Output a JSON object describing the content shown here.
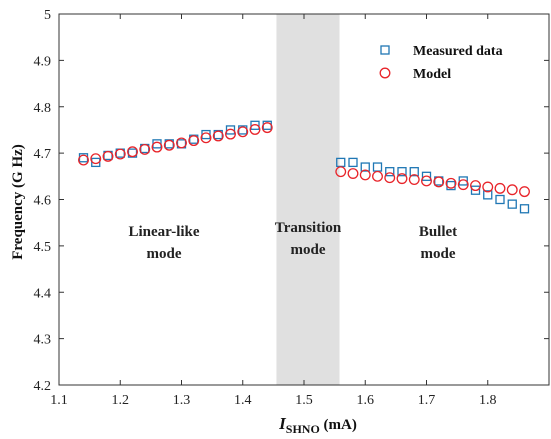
{
  "chart_data": {
    "type": "scatter",
    "xlabel": {
      "main": "I",
      "sub": "SHNO",
      "unit": " (mA)"
    },
    "ylabel": "Frequency (G Hz)",
    "xlim": [
      1.1,
      1.9
    ],
    "ylim": [
      4.2,
      5.0
    ],
    "xticks": [
      "1.1",
      "1.2",
      "1.3",
      "1.4",
      "1.5",
      "1.6",
      "1.7",
      "1.8"
    ],
    "yticks": [
      "4.2",
      "4.3",
      "4.4",
      "4.5",
      "4.6",
      "4.7",
      "4.8",
      "4.9",
      "5"
    ],
    "xtick_values": [
      1.1,
      1.2,
      1.3,
      1.4,
      1.5,
      1.6,
      1.7,
      1.8
    ],
    "ytick_values": [
      4.2,
      4.3,
      4.4,
      4.5,
      4.6,
      4.7,
      4.8,
      4.9,
      5.0
    ],
    "shaded_region": {
      "x": [
        1.455,
        1.558
      ],
      "color": "#e0e0e0"
    },
    "region_labels": [
      {
        "lines": [
          "Linear-like",
          "mode"
        ]
      },
      {
        "lines": [
          "Transition",
          "mode"
        ]
      },
      {
        "lines": [
          "Bullet",
          "mode"
        ]
      }
    ],
    "legend_position": "top-right",
    "series": [
      {
        "name": "Measured data",
        "marker": "square",
        "color": "#1f77b4",
        "points": [
          [
            1.14,
            4.69
          ],
          [
            1.16,
            4.68
          ],
          [
            1.18,
            4.695
          ],
          [
            1.2,
            4.7
          ],
          [
            1.22,
            4.7
          ],
          [
            1.24,
            4.71
          ],
          [
            1.26,
            4.72
          ],
          [
            1.28,
            4.72
          ],
          [
            1.3,
            4.72
          ],
          [
            1.32,
            4.73
          ],
          [
            1.34,
            4.74
          ],
          [
            1.36,
            4.74
          ],
          [
            1.38,
            4.75
          ],
          [
            1.4,
            4.75
          ],
          [
            1.42,
            4.76
          ],
          [
            1.44,
            4.76
          ],
          [
            1.56,
            4.68
          ],
          [
            1.58,
            4.68
          ],
          [
            1.6,
            4.67
          ],
          [
            1.62,
            4.67
          ],
          [
            1.64,
            4.66
          ],
          [
            1.66,
            4.66
          ],
          [
            1.68,
            4.66
          ],
          [
            1.7,
            4.65
          ],
          [
            1.72,
            4.64
          ],
          [
            1.74,
            4.63
          ],
          [
            1.76,
            4.64
          ],
          [
            1.78,
            4.62
          ],
          [
            1.8,
            4.61
          ],
          [
            1.82,
            4.6
          ],
          [
            1.84,
            4.59
          ],
          [
            1.86,
            4.58
          ]
        ]
      },
      {
        "name": "Model",
        "marker": "circle",
        "color": "#e8242a",
        "points": [
          [
            1.14,
            4.685
          ],
          [
            1.16,
            4.688
          ],
          [
            1.18,
            4.693
          ],
          [
            1.2,
            4.698
          ],
          [
            1.22,
            4.703
          ],
          [
            1.24,
            4.708
          ],
          [
            1.26,
            4.713
          ],
          [
            1.28,
            4.717
          ],
          [
            1.3,
            4.722
          ],
          [
            1.32,
            4.727
          ],
          [
            1.34,
            4.733
          ],
          [
            1.36,
            4.737
          ],
          [
            1.38,
            4.741
          ],
          [
            1.4,
            4.746
          ],
          [
            1.42,
            4.751
          ],
          [
            1.44,
            4.755
          ],
          [
            1.56,
            4.66
          ],
          [
            1.58,
            4.656
          ],
          [
            1.6,
            4.653
          ],
          [
            1.62,
            4.65
          ],
          [
            1.64,
            4.647
          ],
          [
            1.66,
            4.645
          ],
          [
            1.68,
            4.643
          ],
          [
            1.7,
            4.64
          ],
          [
            1.72,
            4.638
          ],
          [
            1.74,
            4.635
          ],
          [
            1.76,
            4.632
          ],
          [
            1.78,
            4.63
          ],
          [
            1.8,
            4.627
          ],
          [
            1.82,
            4.624
          ],
          [
            1.84,
            4.621
          ],
          [
            1.86,
            4.617
          ]
        ]
      }
    ]
  }
}
